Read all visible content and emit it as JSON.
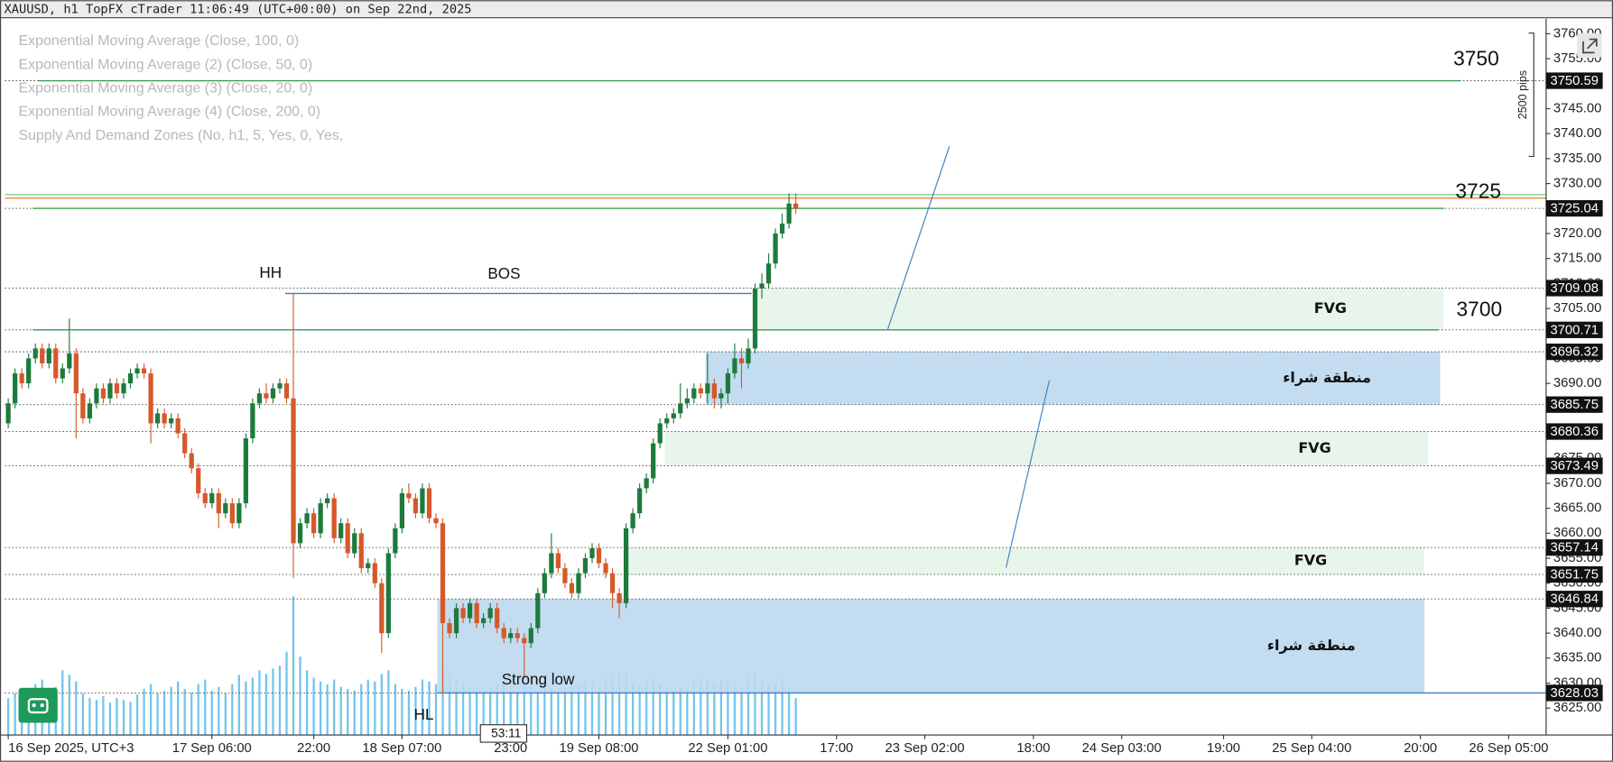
{
  "header": {
    "title": "XAUUSD, h1 TopFX cTrader 11:06:49 (UTC+00:00) on Sep 22nd, 2025"
  },
  "indicators": [
    "Exponential Moving Average (Close, 100, 0)",
    "Exponential Moving Average (2) (Close, 50, 0)",
    "Exponential Moving Average (3) (Close, 20, 0)",
    "Exponential Moving Average (4) (Close, 200, 0)",
    "Supply And Demand Zones (No, h1, 5, Yes, 0, Yes,"
  ],
  "chart_data": {
    "type": "candlestick",
    "open": [
      3682,
      3686,
      3692,
      3690,
      3695,
      3697,
      3694,
      3697,
      3691,
      3693,
      3696,
      3688,
      3683,
      3686,
      3689,
      3687,
      3690,
      3688,
      3690,
      3692,
      3693,
      3692,
      3682,
      3684,
      3682,
      3683,
      3680,
      3676,
      3673,
      3668,
      3666,
      3668,
      3664,
      3666,
      3662,
      3666,
      3679,
      3686,
      3688,
      3687,
      3689,
      3690,
      3687,
      3658,
      3662,
      3664,
      3660,
      3666,
      3667,
      3659,
      3662,
      3656,
      3660,
      3653,
      3654,
      3650,
      3640,
      3656,
      3661,
      3668,
      3667,
      3664,
      3669,
      3663,
      3662,
      3642,
      3640,
      3645,
      3643,
      3646,
      3642,
      3643,
      3645,
      3641,
      3639,
      3640,
      3639,
      3638,
      3641,
      3648,
      3652,
      3656,
      3653,
      3650,
      3648,
      3652,
      3655,
      3657,
      3654,
      3652,
      3648,
      3646,
      3661,
      3664,
      3669,
      3671,
      3678,
      3682,
      3683,
      3684,
      3686,
      3687,
      3689,
      3688,
      3690,
      3687,
      3688,
      3692,
      3695,
      3694,
      3697,
      3709,
      3710,
      3714,
      3720,
      3722,
      3726
    ],
    "high": [
      3687,
      3693,
      3693,
      3696,
      3698,
      3698,
      3698,
      3698,
      3694,
      3703,
      3697,
      3689,
      3687,
      3690,
      3690,
      3691,
      3691,
      3691,
      3693,
      3694,
      3694,
      3693,
      3685,
      3685,
      3684,
      3684,
      3681,
      3677,
      3674,
      3669,
      3669,
      3669,
      3667,
      3667,
      3667,
      3680,
      3687,
      3689,
      3690,
      3690,
      3691,
      3691,
      3708,
      3663,
      3665,
      3665,
      3667,
      3668,
      3668,
      3663,
      3663,
      3661,
      3661,
      3655,
      3655,
      3651,
      3657,
      3662,
      3669,
      3670,
      3668,
      3670,
      3670,
      3664,
      3663,
      3643,
      3646,
      3646,
      3647,
      3647,
      3644,
      3646,
      3646,
      3642,
      3641,
      3641,
      3640,
      3642,
      3649,
      3653,
      3660,
      3657,
      3654,
      3651,
      3653,
      3656,
      3658,
      3658,
      3655,
      3653,
      3649,
      3662,
      3665,
      3670,
      3672,
      3679,
      3683,
      3684,
      3685,
      3690,
      3689,
      3690,
      3690,
      3696,
      3691,
      3689,
      3693,
      3698,
      3697,
      3699,
      3710,
      3712,
      3716,
      3721,
      3724,
      3728,
      3728
    ],
    "low": [
      3681,
      3685,
      3689,
      3689,
      3694,
      3693,
      3693,
      3690,
      3690,
      3692,
      3679,
      3682,
      3682,
      3685,
      3686,
      3686,
      3687,
      3687,
      3689,
      3691,
      3691,
      3678,
      3681,
      3681,
      3681,
      3679,
      3675,
      3672,
      3667,
      3665,
      3665,
      3661,
      3663,
      3661,
      3661,
      3665,
      3678,
      3685,
      3686,
      3686,
      3688,
      3686,
      3651,
      3657,
      3661,
      3659,
      3659,
      3665,
      3658,
      3658,
      3655,
      3655,
      3652,
      3652,
      3649,
      3636,
      3639,
      3655,
      3660,
      3666,
      3663,
      3663,
      3662,
      3661,
      3628,
      3639,
      3639,
      3642,
      3642,
      3641,
      3641,
      3642,
      3640,
      3638,
      3638,
      3638,
      3631,
      3637,
      3640,
      3647,
      3651,
      3652,
      3649,
      3647,
      3647,
      3651,
      3654,
      3653,
      3651,
      3645,
      3643,
      3645,
      3660,
      3663,
      3668,
      3670,
      3677,
      3681,
      3682,
      3683,
      3685,
      3686,
      3687,
      3686,
      3685,
      3685,
      3686,
      3691,
      3689,
      3693,
      3696,
      3707,
      3709,
      3713,
      3719,
      3721,
      3724
    ],
    "close": [
      3686,
      3692,
      3690,
      3695,
      3697,
      3694,
      3697,
      3691,
      3693,
      3696,
      3688,
      3683,
      3686,
      3689,
      3687,
      3690,
      3688,
      3690,
      3692,
      3693,
      3692,
      3682,
      3684,
      3682,
      3683,
      3680,
      3676,
      3673,
      3668,
      3666,
      3668,
      3664,
      3666,
      3662,
      3666,
      3679,
      3686,
      3688,
      3687,
      3689,
      3690,
      3687,
      3658,
      3662,
      3664,
      3660,
      3666,
      3667,
      3659,
      3662,
      3656,
      3660,
      3653,
      3654,
      3650,
      3640,
      3656,
      3661,
      3668,
      3667,
      3664,
      3669,
      3663,
      3662,
      3642,
      3640,
      3645,
      3643,
      3646,
      3642,
      3643,
      3645,
      3641,
      3639,
      3640,
      3639,
      3638,
      3641,
      3648,
      3652,
      3656,
      3653,
      3650,
      3648,
      3652,
      3655,
      3657,
      3654,
      3652,
      3648,
      3646,
      3661,
      3664,
      3669,
      3671,
      3678,
      3682,
      3683,
      3684,
      3686,
      3687,
      3689,
      3688,
      3690,
      3687,
      3688,
      3692,
      3695,
      3694,
      3697,
      3709,
      3710,
      3714,
      3720,
      3722,
      3726,
      3725
    ],
    "volume": [
      40,
      45,
      50,
      42,
      55,
      60,
      48,
      52,
      70,
      65,
      58,
      45,
      40,
      38,
      42,
      35,
      40,
      38,
      36,
      44,
      50,
      55,
      45,
      48,
      52,
      58,
      50,
      46,
      55,
      60,
      48,
      52,
      45,
      55,
      65,
      58,
      62,
      70,
      66,
      72,
      75,
      90,
      150,
      85,
      70,
      62,
      58,
      55,
      60,
      52,
      50,
      48,
      55,
      60,
      58,
      66,
      70,
      55,
      50,
      48,
      52,
      60,
      58,
      55,
      72,
      65,
      60,
      55,
      50,
      48,
      46,
      52,
      55,
      58,
      50,
      45,
      60,
      52,
      48,
      55,
      50,
      45,
      48,
      52,
      55,
      60,
      58,
      50,
      62,
      65,
      70,
      68,
      58,
      55,
      60,
      62,
      55,
      50,
      48,
      52,
      50,
      58,
      62,
      60,
      55,
      60,
      58,
      52,
      50,
      65,
      68,
      60,
      55,
      58,
      62,
      50,
      40
    ],
    "vlim": [
      0,
      150
    ],
    "up_color": "#1d7a3d",
    "down_color": "#d5592b",
    "volume_color": "#72c4ec",
    "xlim": [
      -0.5,
      226.5
    ],
    "xticks": [
      {
        "value": 0,
        "label": "16 Sep 2025, UTC+3"
      },
      {
        "value": 30,
        "label": "17 Sep 06:00"
      },
      {
        "value": 45,
        "label": "22:00"
      },
      {
        "value": 58,
        "label": "18 Sep 07:00"
      },
      {
        "value": 74,
        "label": "23:00"
      },
      {
        "value": 87,
        "label": "19 Sep 08:00"
      },
      {
        "value": 106,
        "label": "22 Sep 01:00"
      },
      {
        "value": 122,
        "label": "17:00"
      },
      {
        "value": 135,
        "label": "23 Sep 02:00"
      },
      {
        "value": 151,
        "label": "18:00"
      },
      {
        "value": 164,
        "label": "24 Sep 03:00"
      },
      {
        "value": 179,
        "label": "19:00"
      },
      {
        "value": 192,
        "label": "25 Sep 04:00"
      },
      {
        "value": 208,
        "label": "20:00"
      },
      {
        "value": 221,
        "label": "26 Sep 05:00"
      }
    ],
    "ylim": [
      3619.6,
      3763.0
    ],
    "yticks": [
      {
        "value": 3625,
        "label": "3625.00"
      },
      {
        "value": 3630,
        "label": "3630.00"
      },
      {
        "value": 3635,
        "label": "3635.00"
      },
      {
        "value": 3640,
        "label": "3640.00"
      },
      {
        "value": 3645,
        "label": "3645.00"
      },
      {
        "value": 3650,
        "label": "3650.00"
      },
      {
        "value": 3655,
        "label": "3655.00"
      },
      {
        "value": 3660,
        "label": "3660.00"
      },
      {
        "value": 3665,
        "label": "3665.00"
      },
      {
        "value": 3670,
        "label": "3670.00"
      },
      {
        "value": 3675,
        "label": "3675.00"
      },
      {
        "value": 3680,
        "label": "3680.00"
      },
      {
        "value": 3685,
        "label": "3685.00"
      },
      {
        "value": 3690,
        "label": "3690.00"
      },
      {
        "value": 3695,
        "label": "3695.00"
      },
      {
        "value": 3700,
        "label": "3700.00"
      },
      {
        "value": 3705,
        "label": "3705.00"
      },
      {
        "value": 3710,
        "label": "3710.00"
      },
      {
        "value": 3715,
        "label": "3715.00"
      },
      {
        "value": 3720,
        "label": "3720.00"
      },
      {
        "value": 3725,
        "label": "3725.00"
      },
      {
        "value": 3730,
        "label": "3730.00"
      },
      {
        "value": 3735,
        "label": "3735.00"
      },
      {
        "value": 3740,
        "label": "3740.00"
      },
      {
        "value": 3745,
        "label": "3745.00"
      },
      {
        "value": 3750,
        "label": "3750.00"
      },
      {
        "value": 3755,
        "label": "3755.00"
      },
      {
        "value": 3760,
        "label": "3760.00"
      }
    ],
    "levels": [
      3750.59,
      3725.04,
      3709.08,
      3700.71,
      3696.32,
      3685.75,
      3680.36,
      3673.49,
      3657.14,
      3651.75,
      3646.84,
      3628.03
    ],
    "lines": [
      {
        "value": 3708,
        "start": 40.8,
        "end": 109.5,
        "color": "#3a7fc4"
      },
      {
        "value": 3628.03,
        "start": 63.2,
        "end": 226.5,
        "color": "#3a7fc4"
      },
      {
        "value": 3750.59,
        "start": 4.5,
        "end": 213.9,
        "color": "#3a9a55"
      },
      {
        "value": 3725.04,
        "start": 3.6,
        "end": 211.5,
        "color": "#3a9a55"
      },
      {
        "value": 3700.71,
        "start": 3.6,
        "end": 210.6,
        "color": "#3a9a55"
      },
      {
        "value": 3727.1,
        "start": -0.5,
        "end": 226.5,
        "color": "#f0873a"
      },
      {
        "value": 3727.8,
        "start": -0.5,
        "end": 226.5,
        "color": "#7cc48a"
      }
    ],
    "zones": [
      {
        "label": "FVG",
        "low": 3700.71,
        "high": 3709.08,
        "start": 110.2,
        "end": 211.4,
        "color": "#e4f4e8"
      },
      {
        "label": "منطقة شراء",
        "low": 3685.75,
        "high": 3696.32,
        "start": 102.7,
        "end": 210.9,
        "color": "#bcd8ee"
      },
      {
        "label": "FVG",
        "low": 3673.49,
        "high": 3680.36,
        "start": 96.7,
        "end": 209.1,
        "color": "#e4f4e8"
      },
      {
        "label": "FVG",
        "low": 3651.75,
        "high": 3657.14,
        "start": 91.2,
        "end": 208.5,
        "color": "#e4f4e8"
      },
      {
        "label": "منطقة شراء",
        "low": 3628.03,
        "high": 3646.84,
        "start": 63.2,
        "end": 208.6,
        "color": "#bcd8ee"
      }
    ],
    "annotations": {
      "hh": "HH",
      "bos": "BOS",
      "hl": "HL",
      "strong_low": "Strong low"
    },
    "round_levels": [
      3750,
      3725,
      3700
    ],
    "measure": "2500 pips",
    "countdown": "53:11"
  }
}
